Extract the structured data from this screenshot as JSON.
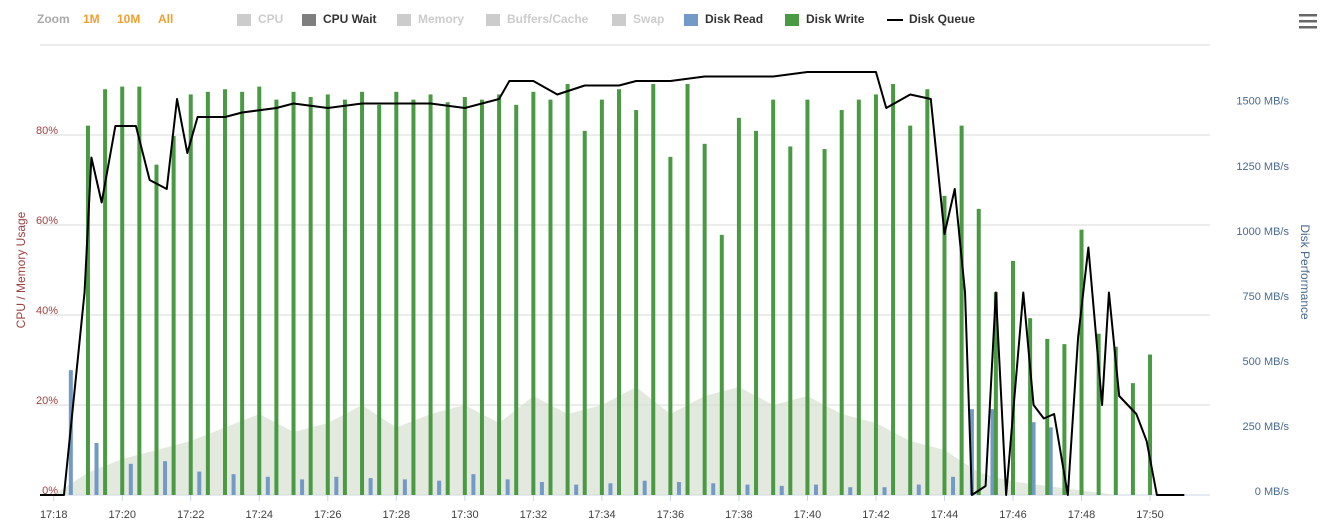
{
  "chart_data": {
    "type": "combo",
    "zoom": {
      "label": "Zoom",
      "buttons": [
        "1M",
        "10M",
        "All"
      ]
    },
    "ylabel": "CPU / Memory Usage",
    "y2label": "Disk Performance",
    "xlim": [
      17.6,
      51.75
    ],
    "xticks": [
      {
        "value": 18,
        "label": "17:18"
      },
      {
        "value": 20,
        "label": "17:20"
      },
      {
        "value": 22,
        "label": "17:22"
      },
      {
        "value": 24,
        "label": "17:24"
      },
      {
        "value": 26,
        "label": "17:26"
      },
      {
        "value": 28,
        "label": "17:28"
      },
      {
        "value": 30,
        "label": "17:30"
      },
      {
        "value": 32,
        "label": "17:32"
      },
      {
        "value": 34,
        "label": "17:34"
      },
      {
        "value": 36,
        "label": "17:36"
      },
      {
        "value": 38,
        "label": "17:38"
      },
      {
        "value": 40,
        "label": "17:40"
      },
      {
        "value": 42,
        "label": "17:42"
      },
      {
        "value": 44,
        "label": "17:44"
      },
      {
        "value": 46,
        "label": "17:46"
      },
      {
        "value": 48,
        "label": "17:48"
      },
      {
        "value": 50,
        "label": "17:50"
      }
    ],
    "ylim": [
      0,
      100
    ],
    "yticks": [
      {
        "value": 0,
        "label": "0%"
      },
      {
        "value": 20,
        "label": "20%"
      },
      {
        "value": 40,
        "label": "40%"
      },
      {
        "value": 60,
        "label": "60%"
      },
      {
        "value": 80,
        "label": "80%"
      }
    ],
    "y2lim": [
      0,
      1730
    ],
    "y2ticks": [
      {
        "value": 0,
        "label": "0 MB/s"
      },
      {
        "value": 250,
        "label": "250 MB/s"
      },
      {
        "value": 500,
        "label": "500 MB/s"
      },
      {
        "value": 750,
        "label": "750 MB/s"
      },
      {
        "value": 1000,
        "label": "1000 MB/s"
      },
      {
        "value": 1250,
        "label": "1250 MB/s"
      },
      {
        "value": 1500,
        "label": "1500 MB/s"
      }
    ],
    "grid": true,
    "hidden_series": [
      {
        "name": "CPU",
        "color": "#cccccc"
      },
      {
        "name": "Memory",
        "color": "#cccccc"
      },
      {
        "name": "Buffers/Cache",
        "color": "#cccccc"
      },
      {
        "name": "Swap",
        "color": "#cccccc"
      }
    ],
    "series": [
      {
        "name": "CPU Wait",
        "kind": "area",
        "color": "#7f7f7f",
        "axis": "y",
        "x": [
          18,
          19,
          20,
          21,
          22,
          23,
          24,
          25,
          26,
          27,
          28,
          29,
          30,
          31,
          32,
          33,
          34,
          35,
          36,
          37,
          38,
          39,
          40,
          41,
          42,
          43,
          44,
          45,
          46,
          47,
          48,
          49,
          50
        ],
        "values": [
          0,
          5,
          8,
          10,
          12,
          15,
          18,
          14,
          16,
          20,
          15,
          18,
          20,
          16,
          22,
          18,
          20,
          24,
          18,
          22,
          24,
          20,
          22,
          18,
          16,
          12,
          10,
          5,
          3,
          2,
          1,
          0,
          0
        ]
      },
      {
        "name": "Disk Read",
        "kind": "bar",
        "color": "#7399c6",
        "axis": "y2",
        "x": [
          18.5,
          19.25,
          20.25,
          21.25,
          22.25,
          23.25,
          24.25,
          25.25,
          26.25,
          27.25,
          28.25,
          29.25,
          30.25,
          31.25,
          32.25,
          33.25,
          34.25,
          35.25,
          36.25,
          37.25,
          38.25,
          39.25,
          40.25,
          41.25,
          42.25,
          43.25,
          44.25,
          44.8,
          45.4,
          46.0,
          46.6,
          47.1
        ],
        "values": [
          480,
          200,
          120,
          130,
          90,
          80,
          70,
          60,
          70,
          65,
          60,
          55,
          80,
          60,
          50,
          40,
          45,
          55,
          50,
          45,
          40,
          35,
          40,
          30,
          30,
          40,
          70,
          330,
          330,
          290,
          280,
          260
        ]
      },
      {
        "name": "Disk Write",
        "kind": "bar",
        "color": "#4a9a44",
        "axis": "y2",
        "x": [
          19,
          19.5,
          20,
          20.5,
          21,
          21.5,
          22,
          22.5,
          23,
          23.5,
          24,
          24.5,
          25,
          25.5,
          26,
          26.5,
          27,
          27.5,
          28,
          28.5,
          29,
          29.5,
          30,
          30.5,
          31,
          31.5,
          32,
          32.5,
          33,
          33.5,
          34,
          34.5,
          35,
          35.5,
          36,
          36.5,
          37,
          37.5,
          38,
          38.5,
          39,
          39.5,
          40,
          40.5,
          41,
          41.5,
          42,
          42.5,
          43,
          43.5,
          44,
          44.5,
          45,
          45.5,
          46,
          46.5,
          47,
          47.5,
          48,
          48.5,
          49,
          49.5,
          50
        ],
        "values": [
          1420,
          1560,
          1570,
          1570,
          1270,
          1380,
          1540,
          1550,
          1560,
          1550,
          1570,
          1520,
          1550,
          1530,
          1540,
          1520,
          1550,
          1500,
          1550,
          1520,
          1540,
          1510,
          1530,
          1520,
          1540,
          1500,
          1550,
          1520,
          1580,
          1400,
          1520,
          1560,
          1480,
          1580,
          1300,
          1580,
          1350,
          1000,
          1450,
          1400,
          1520,
          1340,
          1520,
          1330,
          1480,
          1520,
          1540,
          1580,
          1420,
          1560,
          1150,
          1420,
          1100,
          780,
          900,
          680,
          600,
          580,
          1020,
          620,
          570,
          430,
          540
        ]
      },
      {
        "name": "Disk Queue",
        "kind": "line",
        "color": "#000000",
        "axis": "y",
        "x": [
          17.6,
          18.3,
          18.9,
          19.1,
          19.4,
          19.8,
          20.4,
          20.8,
          21.3,
          21.6,
          21.9,
          22.2,
          23,
          23.5,
          24.5,
          25,
          26,
          27,
          28,
          29,
          30,
          31,
          31.3,
          32,
          32.7,
          33.5,
          34.5,
          35,
          36,
          37,
          38,
          39,
          40,
          41,
          42,
          42.3,
          43,
          43.6,
          44.0,
          44.3,
          44.6,
          44.8,
          45.2,
          45.5,
          45.8,
          46.3,
          46.6,
          46.9,
          47.2,
          47.6,
          47.9,
          48.2,
          48.6,
          48.8,
          49.1,
          49.6,
          49.9,
          50.2,
          51
        ],
        "values": [
          0,
          0,
          45,
          75,
          65,
          82,
          82,
          70,
          68,
          88,
          76,
          84,
          84,
          85,
          86,
          87,
          86,
          87,
          87,
          87,
          86,
          88,
          92,
          92,
          89,
          91,
          91,
          92,
          92,
          93,
          93,
          93,
          94,
          94,
          94,
          86,
          89,
          88,
          58,
          68,
          45,
          0,
          2,
          45,
          0,
          45,
          20,
          17,
          18,
          0,
          35,
          55,
          20,
          45,
          22,
          18,
          12,
          0,
          0
        ]
      }
    ]
  }
}
